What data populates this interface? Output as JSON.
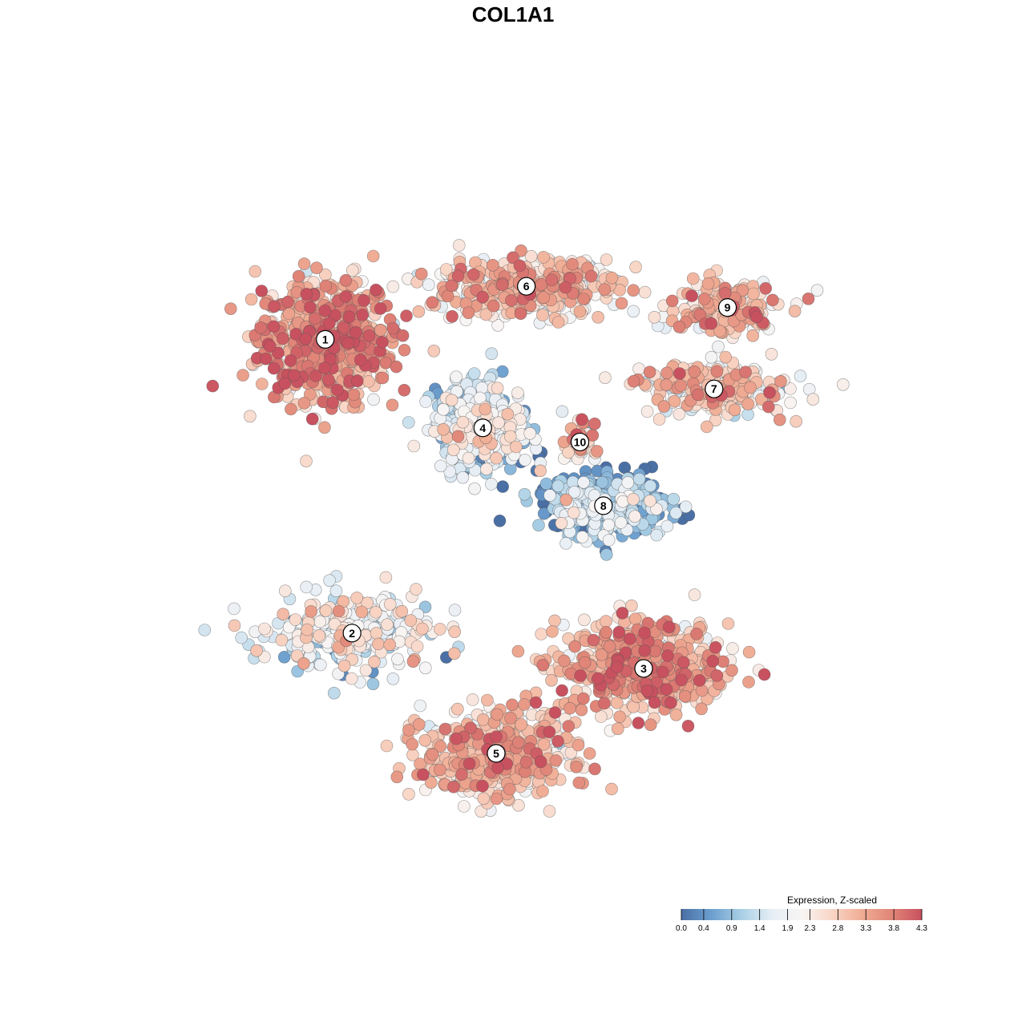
{
  "chart_data": {
    "type": "scatter",
    "title": "COL1A1",
    "xlabel": "",
    "ylabel": "",
    "axes_visible": false,
    "grid": false,
    "legend": {
      "title": "Expression, Z-scaled",
      "placement": "bottom-right",
      "ticks": [
        "0.0",
        "0.4",
        "0.9",
        "1.4",
        "1.9",
        "2.3",
        "2.8",
        "3.3",
        "3.8",
        "4.3"
      ],
      "range": [
        0.0,
        4.3
      ],
      "colors": [
        "#4a6fa5",
        "#6c9fcf",
        "#a9cfe5",
        "#e6eef5",
        "#f8f5f4",
        "#f9d6c6",
        "#f0ad95",
        "#e08578",
        "#c8515f"
      ]
    },
    "clusters": [
      {
        "id": "1",
        "x": -6.2,
        "y": 5.1,
        "spread_x": 2.2,
        "spread_y": 1.9,
        "n": 650,
        "expression_mean": 3.2
      },
      {
        "id": "2",
        "x": -5.4,
        "y": -3.2,
        "spread_x": 2.6,
        "spread_y": 1.2,
        "n": 320,
        "expression_mean": 1.8
      },
      {
        "id": "3",
        "x": 3.3,
        "y": -4.2,
        "spread_x": 2.8,
        "spread_y": 1.4,
        "n": 520,
        "expression_mean": 3.1
      },
      {
        "id": "4",
        "x": -1.5,
        "y": 2.6,
        "spread_x": 1.6,
        "spread_y": 1.3,
        "n": 420,
        "expression_mean": 1.4
      },
      {
        "id": "5",
        "x": -1.1,
        "y": -6.6,
        "spread_x": 2.4,
        "spread_y": 1.3,
        "n": 560,
        "expression_mean": 2.7
      },
      {
        "id": "6",
        "x": -0.2,
        "y": 6.6,
        "spread_x": 3.0,
        "spread_y": 0.9,
        "n": 480,
        "expression_mean": 2.6
      },
      {
        "id": "7",
        "x": 5.4,
        "y": 3.7,
        "spread_x": 2.4,
        "spread_y": 0.8,
        "n": 260,
        "expression_mean": 2.5
      },
      {
        "id": "8",
        "x": 2.1,
        "y": 0.4,
        "spread_x": 2.2,
        "spread_y": 1.0,
        "n": 360,
        "expression_mean": 0.8
      },
      {
        "id": "9",
        "x": 5.8,
        "y": 6.0,
        "spread_x": 1.8,
        "spread_y": 0.9,
        "n": 200,
        "expression_mean": 2.7
      },
      {
        "id": "10",
        "x": 1.4,
        "y": 2.2,
        "spread_x": 0.5,
        "spread_y": 0.6,
        "n": 50,
        "expression_mean": 2.8
      }
    ],
    "xlim": [
      -11.0,
      11.0
    ],
    "ylim": [
      -10.0,
      10.5
    ]
  }
}
